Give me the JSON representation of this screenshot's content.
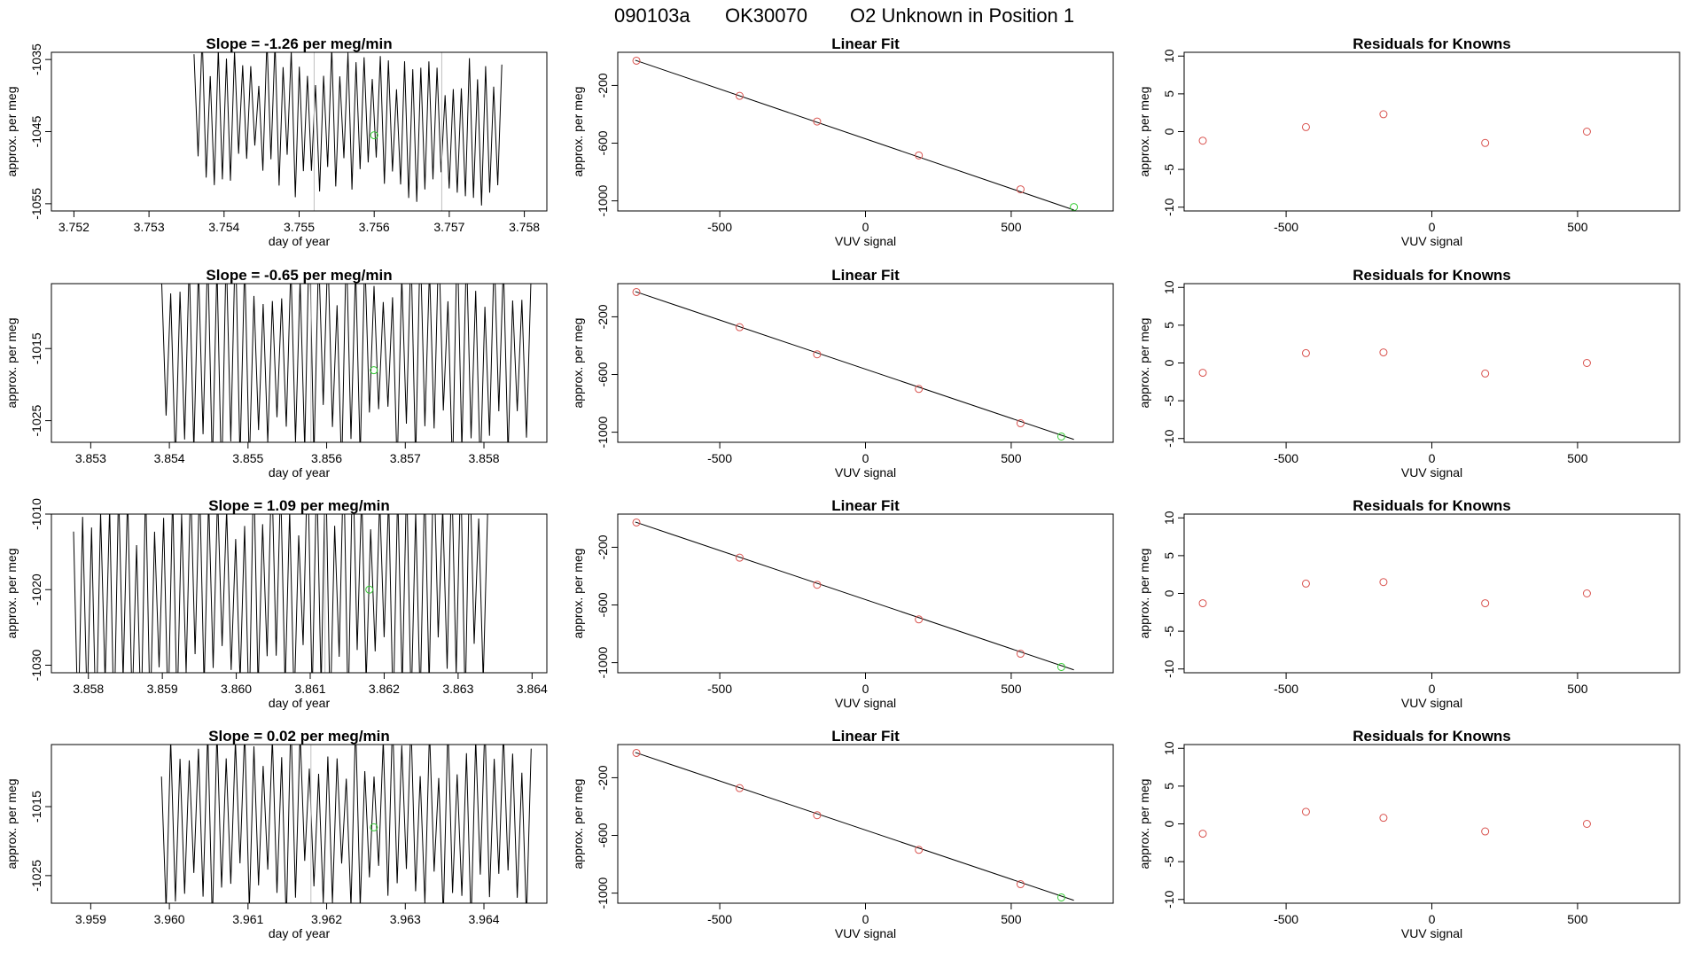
{
  "header": {
    "run_id": "090103a",
    "sample_id": "OK30070",
    "description": "O2 Unknown in Position  1"
  },
  "colors": {
    "known_points": "#d9534f",
    "unknown_point": "#33cc33",
    "line": "#000000",
    "frame": "#000000",
    "marker_line": "#c0c0c0"
  },
  "chart_data": [
    {
      "type": "line",
      "title": "Slope =  -1.26  per meg/min",
      "xlabel": "day of year",
      "ylabel": "approx. per meg",
      "xlim": [
        3.7517,
        3.7583
      ],
      "ylim": [
        -1056,
        -1034
      ],
      "xticks": [
        3.752,
        3.753,
        3.754,
        3.755,
        3.756,
        3.757,
        3.758
      ],
      "xtick_labels": [
        "3.752",
        "3.753",
        "3.754",
        "3.755",
        "3.756",
        "3.757",
        "3.758"
      ],
      "yticks": [
        -1035,
        -1045,
        -1055
      ],
      "ytick_labels": [
        "-1035",
        "-1045",
        "-1055"
      ],
      "trace": {
        "x_start": 3.7536,
        "x_end": 3.7577,
        "center": -1044,
        "amplitude": 9,
        "slope": -0.4,
        "cycles": 38,
        "seed": 1
      },
      "markers": [
        3.7552,
        3.7569
      ],
      "unknown": {
        "x": 3.756,
        "y": -1045.5
      }
    },
    {
      "type": "scatter",
      "title": "Linear Fit",
      "xlabel": "VUV signal",
      "ylabel": "approx. per meg",
      "xlim": [
        -850,
        850
      ],
      "ylim": [
        -1070,
        30
      ],
      "xticks": [
        -500,
        0,
        500
      ],
      "xtick_labels": [
        "-500",
        "0",
        "500"
      ],
      "yticks": [
        -200,
        -600,
        -1000
      ],
      "ytick_labels": [
        "-200",
        "-600",
        "-1000"
      ],
      "fit_line": {
        "x": [
          -790,
          715
        ],
        "y": [
          -25,
          -1063
        ]
      },
      "known_x": [
        -786,
        -432,
        -166,
        183,
        532
      ],
      "known_y": [
        -28,
        -272,
        -450,
        -685,
        -920
      ],
      "unknown": {
        "x": 715,
        "y": -1043
      }
    },
    {
      "type": "scatter",
      "title": "Residuals for Knowns",
      "xlabel": "VUV signal",
      "ylabel": "approx. per meg",
      "xlim": [
        -850,
        850
      ],
      "ylim": [
        -10.5,
        10.5
      ],
      "xticks": [
        -500,
        0,
        500
      ],
      "xtick_labels": [
        "-500",
        "0",
        "500"
      ],
      "yticks": [
        -10,
        -5,
        0,
        5,
        10
      ],
      "ytick_labels": [
        "-10",
        "-5",
        "0",
        "5",
        "10"
      ],
      "x": [
        -786,
        -432,
        -166,
        183,
        532
      ],
      "y": [
        -1.2,
        0.6,
        2.3,
        -1.5,
        0.0
      ]
    },
    {
      "type": "line",
      "title": "Slope =  -0.65  per meg/min",
      "xlabel": "day of year",
      "ylabel": "approx. per meg",
      "xlim": [
        3.8525,
        3.8588
      ],
      "ylim": [
        -1028,
        -1006
      ],
      "xticks": [
        3.853,
        3.854,
        3.855,
        3.856,
        3.857,
        3.858
      ],
      "xtick_labels": [
        "3.853",
        "3.854",
        "3.855",
        "3.856",
        "3.857",
        "3.858"
      ],
      "yticks": [
        -1015,
        -1025
      ],
      "ytick_labels": [
        "-1015",
        "-1025"
      ],
      "trace": {
        "x_start": 3.8539,
        "x_end": 3.8586,
        "center": -1016,
        "amplitude": 15,
        "slope": 0,
        "cycles": 40,
        "seed": 2
      },
      "markers": [
        3.8558
      ],
      "unknown": {
        "x": 3.8566,
        "y": -1018
      }
    },
    {
      "type": "scatter",
      "title": "Linear Fit",
      "xlabel": "VUV signal",
      "ylabel": "approx. per meg",
      "xlim": [
        -850,
        850
      ],
      "ylim": [
        -1070,
        30
      ],
      "xticks": [
        -500,
        0,
        500
      ],
      "xtick_labels": [
        "-500",
        "0",
        "500"
      ],
      "yticks": [
        -200,
        -600,
        -1000
      ],
      "ytick_labels": [
        "-200",
        "-600",
        "-1000"
      ],
      "fit_line": {
        "x": [
          -790,
          715
        ],
        "y": [
          -25,
          -1050
        ]
      },
      "known_x": [
        -786,
        -432,
        -166,
        183,
        532
      ],
      "known_y": [
        -28,
        -272,
        -460,
        -700,
        -938
      ],
      "unknown": {
        "x": 672,
        "y": -1030
      }
    },
    {
      "type": "scatter",
      "title": "Residuals for Knowns",
      "xlabel": "VUV signal",
      "ylabel": "approx. per meg",
      "xlim": [
        -850,
        850
      ],
      "ylim": [
        -10.5,
        10.5
      ],
      "xticks": [
        -500,
        0,
        500
      ],
      "xtick_labels": [
        "-500",
        "0",
        "500"
      ],
      "yticks": [
        -10,
        -5,
        0,
        5,
        10
      ],
      "ytick_labels": [
        "-10",
        "-5",
        "0",
        "5",
        "10"
      ],
      "x": [
        -786,
        -432,
        -166,
        183,
        532
      ],
      "y": [
        -1.3,
        1.3,
        1.4,
        -1.4,
        0.0
      ]
    },
    {
      "type": "line",
      "title": "Slope =  1.09  per meg/min",
      "xlabel": "day of year",
      "ylabel": "approx. per meg",
      "xlim": [
        3.8575,
        3.8642
      ],
      "ylim": [
        -1031,
        -1010
      ],
      "xticks": [
        3.858,
        3.859,
        3.86,
        3.861,
        3.862,
        3.863,
        3.864
      ],
      "xtick_labels": [
        "3.858",
        "3.859",
        "3.860",
        "3.861",
        "3.862",
        "3.863",
        "3.864"
      ],
      "yticks": [
        -1010,
        -1020,
        -1030
      ],
      "ytick_labels": [
        "-1010",
        "-1020",
        "-1030"
      ],
      "trace": {
        "x_start": 3.8578,
        "x_end": 3.8634,
        "center": -1020,
        "amplitude": 15,
        "slope": 0.3,
        "cycles": 46,
        "seed": 3
      },
      "markers": [
        3.8612
      ],
      "unknown": {
        "x": 3.8618,
        "y": -1020
      }
    },
    {
      "type": "scatter",
      "title": "Linear Fit",
      "xlabel": "VUV signal",
      "ylabel": "approx. per meg",
      "xlim": [
        -850,
        850
      ],
      "ylim": [
        -1070,
        30
      ],
      "xticks": [
        -500,
        0,
        500
      ],
      "xtick_labels": [
        "-500",
        "0",
        "500"
      ],
      "yticks": [
        -200,
        -600,
        -1000
      ],
      "ytick_labels": [
        "-200",
        "-600",
        "-1000"
      ],
      "fit_line": {
        "x": [
          -790,
          715
        ],
        "y": [
          -25,
          -1050
        ]
      },
      "known_x": [
        -786,
        -432,
        -166,
        183,
        532
      ],
      "known_y": [
        -28,
        -272,
        -460,
        -700,
        -938
      ],
      "unknown": {
        "x": 672,
        "y": -1030
      }
    },
    {
      "type": "scatter",
      "title": "Residuals for Knowns",
      "xlabel": "VUV signal",
      "ylabel": "approx. per meg",
      "xlim": [
        -850,
        850
      ],
      "ylim": [
        -10.5,
        10.5
      ],
      "xticks": [
        -500,
        0,
        500
      ],
      "xtick_labels": [
        "-500",
        "0",
        "500"
      ],
      "yticks": [
        -10,
        -5,
        0,
        5,
        10
      ],
      "ytick_labels": [
        "-10",
        "-5",
        "0",
        "5",
        "10"
      ],
      "x": [
        -786,
        -432,
        -166,
        183,
        532
      ],
      "y": [
        -1.3,
        1.3,
        1.5,
        -1.3,
        0.0
      ]
    },
    {
      "type": "line",
      "title": "Slope =  0.02  per meg/min",
      "xlabel": "day of year",
      "ylabel": "approx. per meg",
      "xlim": [
        3.9585,
        3.9648
      ],
      "ylim": [
        -1029,
        -1006
      ],
      "xticks": [
        3.959,
        3.96,
        3.961,
        3.962,
        3.963,
        3.964
      ],
      "xtick_labels": [
        "3.959",
        "3.960",
        "3.961",
        "3.962",
        "3.963",
        "3.964"
      ],
      "yticks": [
        -1015,
        -1025
      ],
      "ytick_labels": [
        "-1015",
        "-1025"
      ],
      "trace": {
        "x_start": 3.9599,
        "x_end": 3.9646,
        "center": -1017,
        "amplitude": 13,
        "slope": 0,
        "cycles": 40,
        "seed": 4
      },
      "markers": [
        3.9618
      ],
      "unknown": {
        "x": 3.9626,
        "y": -1018
      }
    },
    {
      "type": "scatter",
      "title": "Linear Fit",
      "xlabel": "VUV signal",
      "ylabel": "approx. per meg",
      "xlim": [
        -850,
        850
      ],
      "ylim": [
        -1070,
        30
      ],
      "xticks": [
        -500,
        0,
        500
      ],
      "xtick_labels": [
        "-500",
        "0",
        "500"
      ],
      "yticks": [
        -200,
        -600,
        -1000
      ],
      "ytick_labels": [
        "-200",
        "-600",
        "-1000"
      ],
      "fit_line": {
        "x": [
          -790,
          715
        ],
        "y": [
          -25,
          -1050
        ]
      },
      "known_x": [
        -786,
        -432,
        -166,
        183,
        532
      ],
      "known_y": [
        -28,
        -272,
        -460,
        -700,
        -938
      ],
      "unknown": {
        "x": 672,
        "y": -1030
      }
    },
    {
      "type": "scatter",
      "title": "Residuals for Knowns",
      "xlabel": "VUV signal",
      "ylabel": "approx. per meg",
      "xlim": [
        -850,
        850
      ],
      "ylim": [
        -10.5,
        10.5
      ],
      "xticks": [
        -500,
        0,
        500
      ],
      "xtick_labels": [
        "-500",
        "0",
        "500"
      ],
      "yticks": [
        -10,
        -5,
        0,
        5,
        10
      ],
      "ytick_labels": [
        "-10",
        "-5",
        "0",
        "5",
        "10"
      ],
      "x": [
        -786,
        -432,
        -166,
        183,
        532
      ],
      "y": [
        -1.3,
        1.6,
        0.8,
        -1.0,
        0.0
      ]
    }
  ]
}
